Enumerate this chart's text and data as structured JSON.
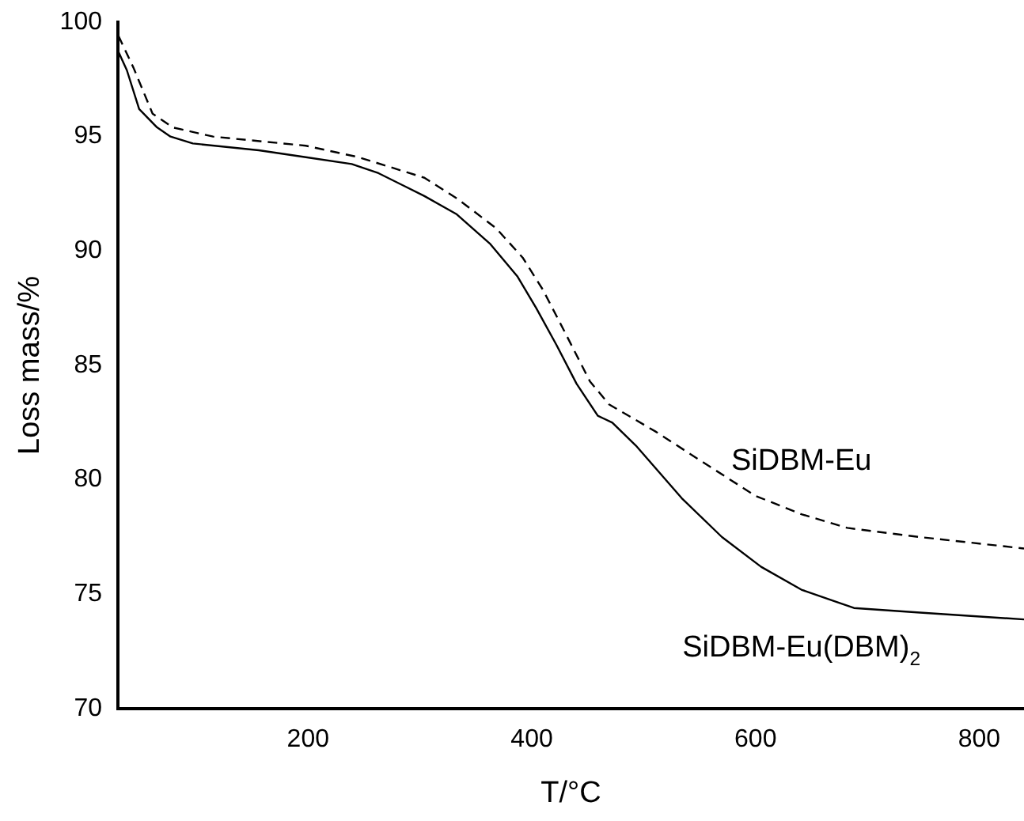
{
  "chart_data": {
    "type": "line",
    "xlabel": "T/°C",
    "ylabel": "Loss mass/%",
    "xlim": [
      30,
      840
    ],
    "xticks": [
      200,
      400,
      600,
      800
    ],
    "ylim": [
      70,
      100
    ],
    "yticks": [
      70,
      75,
      80,
      85,
      90,
      95,
      100
    ],
    "grid": false,
    "legend": false,
    "marker": "none",
    "series": [
      {
        "name": "SiDBM-Eu",
        "color": "#000000",
        "line_style": "dashed",
        "x": [
          30.5,
          44,
          61,
          79,
          115,
          198,
          245,
          304,
          333,
          368,
          392,
          410,
          428,
          452,
          469,
          511,
          552,
          600,
          641,
          682,
          747,
          840
        ],
        "values": [
          99.4,
          98.0,
          96.0,
          95.4,
          95.0,
          94.6,
          94.1,
          93.2,
          92.3,
          91.0,
          89.7,
          88.3,
          86.6,
          84.3,
          83.3,
          82.1,
          80.8,
          79.3,
          78.5,
          77.9,
          77.5,
          77.0
        ]
      },
      {
        "name": "SiDBM-Eu(DBM)$_{2}$",
        "color": "#000000",
        "line_style": "solid",
        "x": [
          30.5,
          38,
          49,
          65,
          77,
          97,
          156,
          198,
          239,
          263,
          304,
          333,
          363,
          387,
          404,
          422,
          440,
          459,
          472,
          493,
          534,
          570,
          605,
          641,
          688,
          747,
          840
        ],
        "values": [
          98.7,
          97.9,
          96.2,
          95.4,
          95.0,
          94.7,
          94.4,
          94.1,
          93.8,
          93.4,
          92.4,
          91.6,
          90.3,
          88.9,
          87.5,
          85.9,
          84.2,
          82.8,
          82.5,
          81.5,
          79.2,
          77.5,
          76.2,
          75.2,
          74.4,
          74.2,
          73.9
        ]
      }
    ]
  }
}
